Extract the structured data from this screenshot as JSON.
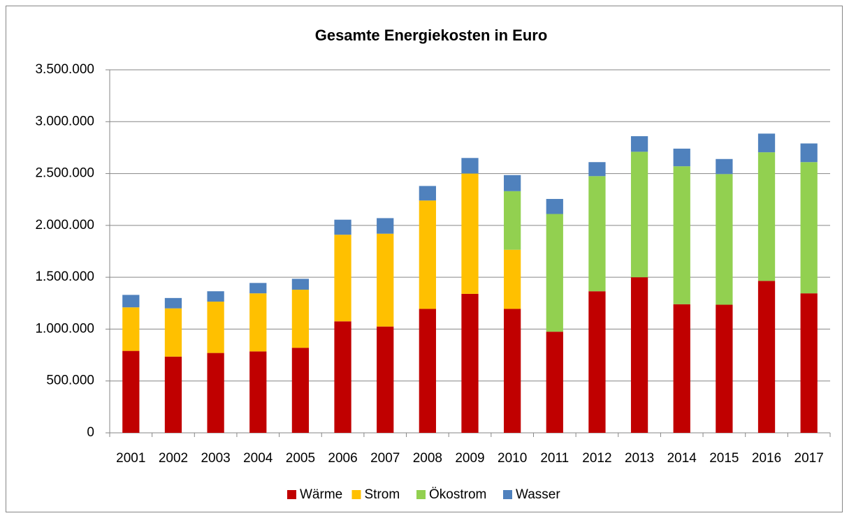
{
  "chart_data": {
    "type": "stacked_bar",
    "title": "Gesamte Energiekosten in Euro",
    "categories": [
      "2001",
      "2002",
      "2003",
      "2004",
      "2005",
      "2006",
      "2007",
      "2008",
      "2009",
      "2010",
      "2011",
      "2012",
      "2013",
      "2014",
      "2015",
      "2016",
      "2017"
    ],
    "series": [
      {
        "name": "Wärme",
        "color": "#c00000",
        "values": [
          790000,
          735000,
          770000,
          785000,
          820000,
          1075000,
          1025000,
          1195000,
          1340000,
          1195000,
          975000,
          1365000,
          1500000,
          1240000,
          1235000,
          1465000,
          1345000
        ]
      },
      {
        "name": "Strom",
        "color": "#ffc000",
        "values": [
          420000,
          465000,
          495000,
          560000,
          560000,
          835000,
          895000,
          1045000,
          1160000,
          570000,
          null,
          null,
          null,
          null,
          null,
          null,
          null
        ]
      },
      {
        "name": "Ökostrom",
        "color": "#92d050",
        "values": [
          null,
          null,
          null,
          null,
          null,
          null,
          null,
          null,
          null,
          565000,
          1135000,
          1110000,
          1210000,
          1330000,
          1260000,
          1240000,
          1265000
        ]
      },
      {
        "name": "Wasser",
        "color": "#4f81bd",
        "values": [
          120000,
          100000,
          100000,
          100000,
          105000,
          145000,
          150000,
          140000,
          150000,
          155000,
          145000,
          135000,
          150000,
          170000,
          145000,
          180000,
          180000
        ]
      }
    ],
    "ylim": [
      0,
      3500000
    ],
    "yticks": [
      0,
      {
        "value": 500000,
        "label": "500.000"
      },
      {
        "value": 1000000,
        "label": "1.000.000"
      },
      {
        "value": 1500000,
        "label": "1.500.000"
      },
      {
        "value": 2000000,
        "label": "2.000.000"
      },
      {
        "value": 2500000,
        "label": "2.500.000"
      },
      {
        "value": 3000000,
        "label": "3.000.000"
      },
      {
        "value": 3500000,
        "label": "3.500.000"
      }
    ],
    "grid": true,
    "legend": "bottom"
  }
}
